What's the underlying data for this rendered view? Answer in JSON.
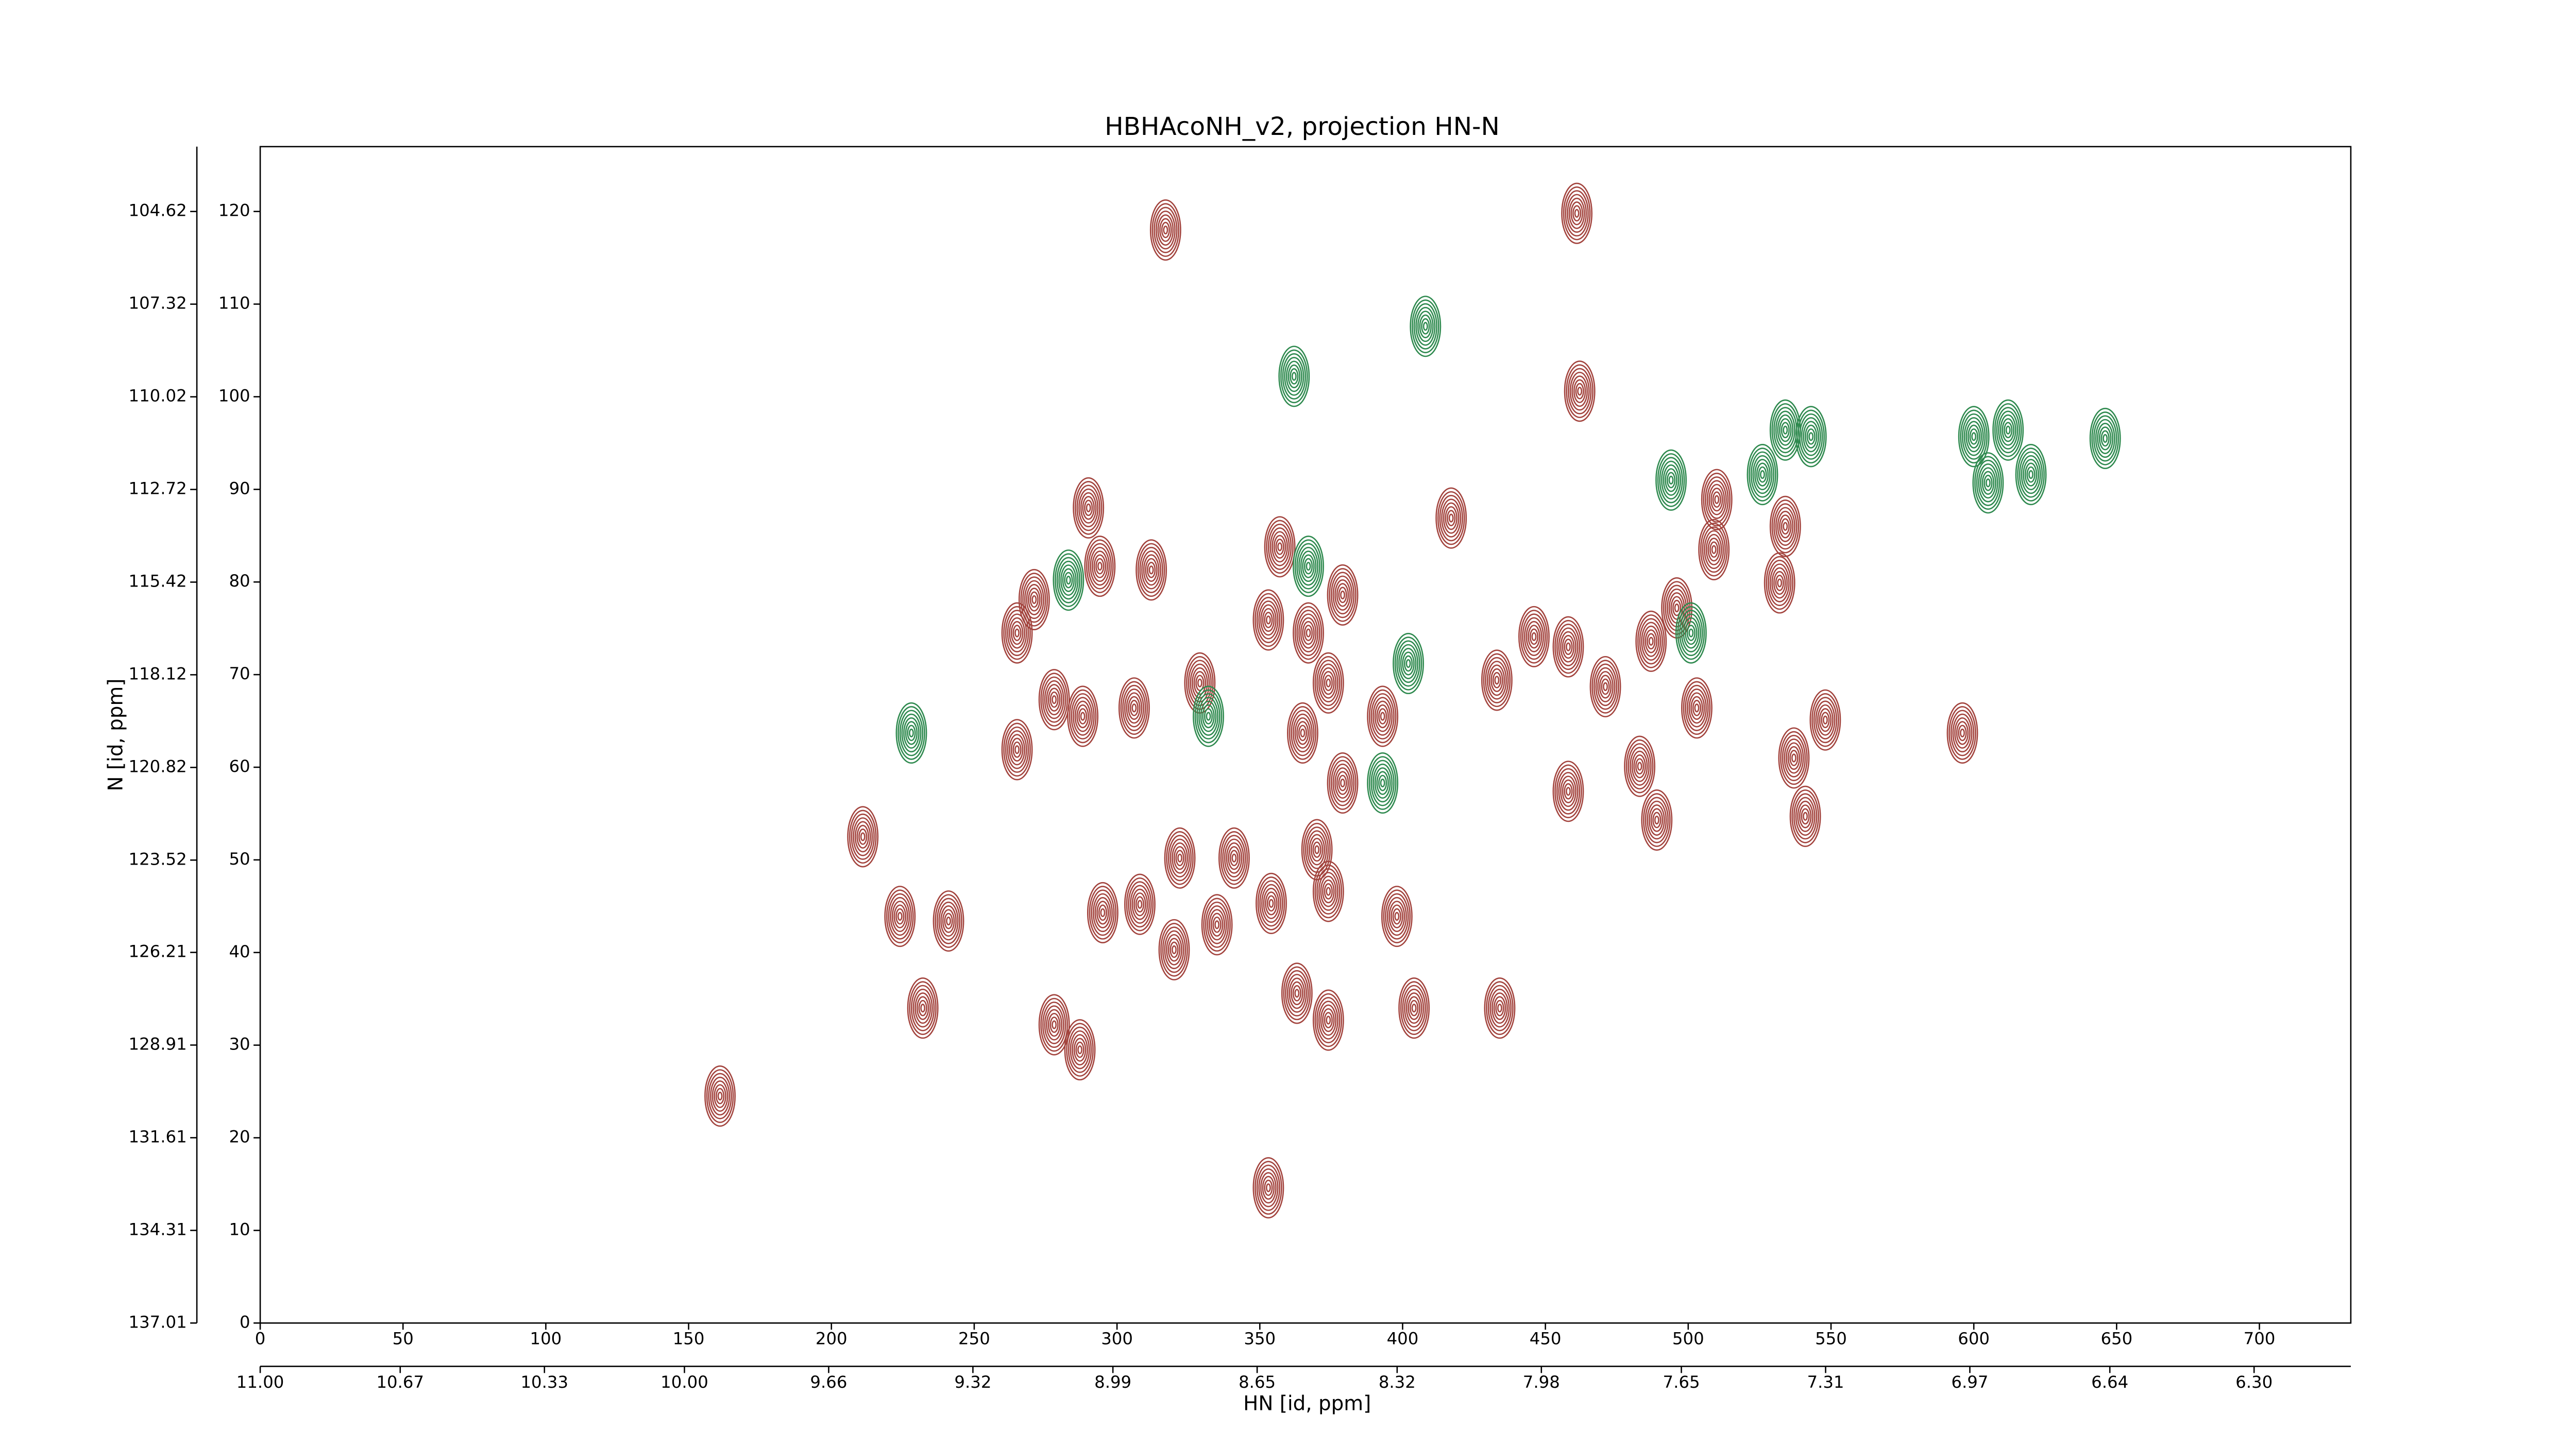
{
  "chart_data": {
    "type": "contour",
    "title": "HBHAcoNH_v2, projection HN-N",
    "x_label": "HN [id, ppm]",
    "y_label": "N [id, ppm]",
    "xlim": [
      0,
      732
    ],
    "xticks": [
      0,
      50,
      100,
      150,
      200,
      250,
      300,
      350,
      400,
      450,
      500,
      550,
      600,
      650,
      700
    ],
    "ylim": [
      0,
      127
    ],
    "yticks": [
      0,
      10,
      20,
      30,
      40,
      50,
      60,
      70,
      80,
      90,
      100,
      110,
      120
    ],
    "x2lim": [
      11.0,
      6.072
    ],
    "x2ticks": [
      {
        "value": 11.0,
        "label": "11.00"
      },
      {
        "value": 10.67,
        "label": "10.67"
      },
      {
        "value": 10.33,
        "label": "10.33"
      },
      {
        "value": 10.0,
        "label": "10.00"
      },
      {
        "value": 9.66,
        "label": "9.66"
      },
      {
        "value": 9.32,
        "label": "9.32"
      },
      {
        "value": 8.99,
        "label": "8.99"
      },
      {
        "value": 8.65,
        "label": "8.65"
      },
      {
        "value": 8.32,
        "label": "8.32"
      },
      {
        "value": 7.98,
        "label": "7.98"
      },
      {
        "value": 7.65,
        "label": "7.65"
      },
      {
        "value": 7.31,
        "label": "7.31"
      },
      {
        "value": 6.97,
        "label": "6.97"
      },
      {
        "value": 6.64,
        "label": "6.64"
      },
      {
        "value": 6.3,
        "label": "6.30"
      }
    ],
    "y2lim": [
      137.01,
      102.73
    ],
    "y2ticks": [
      {
        "value": 137.01,
        "label": "137.01"
      },
      {
        "value": 134.31,
        "label": "134.31"
      },
      {
        "value": 131.61,
        "label": "131.61"
      },
      {
        "value": 128.91,
        "label": "128.91"
      },
      {
        "value": 126.21,
        "label": "126.21"
      },
      {
        "value": 123.52,
        "label": "123.52"
      },
      {
        "value": 120.82,
        "label": "120.82"
      },
      {
        "value": 118.12,
        "label": "118.12"
      },
      {
        "value": 115.42,
        "label": "115.42"
      },
      {
        "value": 112.72,
        "label": "112.72"
      },
      {
        "value": 110.02,
        "label": "110.02"
      },
      {
        "value": 107.32,
        "label": "107.32"
      },
      {
        "value": 104.62,
        "label": "104.62"
      }
    ],
    "series": [
      {
        "color": "#a3443e",
        "x": [
          317,
          461,
          462,
          290,
          417,
          510,
          509,
          534,
          532,
          271,
          294,
          312,
          357,
          379,
          353,
          367,
          374,
          496,
          487,
          446,
          458,
          433,
          471,
          503,
          548,
          537,
          541,
          596,
          278,
          288,
          306,
          265,
          329,
          365,
          393,
          379,
          458,
          483,
          489,
          211,
          224,
          241,
          232,
          295,
          308,
          320,
          322,
          341,
          335,
          354,
          370,
          374,
          398,
          363,
          374,
          404,
          434,
          278,
          287,
          161,
          353,
          265
        ],
        "y": [
          118.0,
          119.8,
          100.6,
          88.0,
          86.9,
          88.9,
          83.5,
          86.0,
          79.9,
          78.1,
          81.7,
          81.3,
          83.8,
          78.6,
          75.9,
          74.5,
          69.1,
          77.2,
          73.6,
          74.1,
          73.0,
          69.4,
          68.7,
          66.4,
          65.1,
          61.0,
          54.7,
          63.7,
          67.3,
          65.5,
          66.4,
          61.9,
          69.1,
          63.7,
          65.5,
          58.3,
          57.4,
          60.1,
          54.3,
          52.5,
          43.9,
          43.4,
          34.0,
          44.3,
          45.2,
          40.3,
          50.2,
          50.2,
          43.0,
          45.3,
          51.1,
          46.6,
          43.9,
          35.6,
          32.7,
          34.0,
          34.0,
          32.2,
          29.5,
          24.5,
          14.6,
          74.5
        ]
      },
      {
        "color": "#2f8a4f",
        "x": [
          228,
          362,
          408,
          283,
          367,
          402,
          501,
          494,
          526,
          534,
          543,
          600,
          612,
          605,
          620,
          646,
          393,
          332
        ],
        "y": [
          63.7,
          102.2,
          107.6,
          80.2,
          81.7,
          71.2,
          74.5,
          91.0,
          91.6,
          96.4,
          95.7,
          95.7,
          96.4,
          90.7,
          91.6,
          95.5,
          58.3,
          65.5
        ]
      }
    ]
  }
}
